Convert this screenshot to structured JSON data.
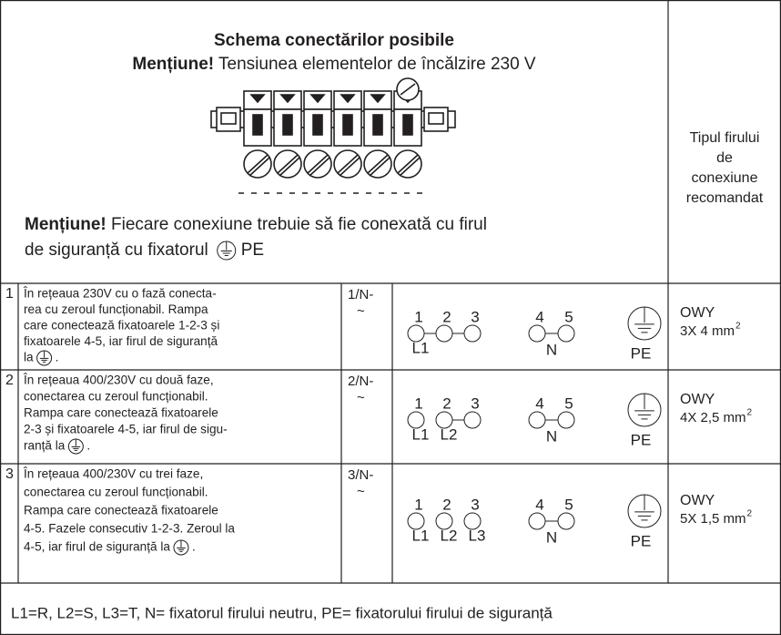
{
  "header": {
    "title": "Schema conectărilor posibile",
    "note1_label": "Mențiune!",
    "note1_text": "Tensiunea elementelor de încălzire 230 V",
    "note2_label": "Mențiune!",
    "note2_line1": "Fiecare conexiune trebuie să fie conexată cu firul",
    "note2_line2": "de siguranță cu fixatorul",
    "note2_end": "PE"
  },
  "wire_header": [
    "Tipul firului",
    "de",
    "conexiune",
    "recomandat"
  ],
  "rows": [
    {
      "number": "1",
      "lines": [
        "În rețeaua 230V cu o fază conecta-",
        "rea cu zeroul funcționabil. Rampa",
        "care conectează fixatoarele 1-2-3 și",
        "fixatoarele 4-5, iar firul de siguranță"
      ],
      "last_before": "la",
      "last_after": ".",
      "code": [
        "1/N-",
        "~"
      ],
      "terminals": [
        "1",
        "2",
        "3",
        "4",
        "5"
      ],
      "phases": [
        "L1"
      ],
      "neutral": "N",
      "earth": "PE",
      "wire": "OWY",
      "wire_size": "3X 4 mm",
      "wire_exp": "2"
    },
    {
      "number": "2",
      "lines": [
        "În rețeaua 400/230V cu două faze,",
        "conectarea cu zeroul funcționabil.",
        "Rampa care conectează fixatoarele",
        "2-3 și fixatoarele 4-5, iar firul de sigu-"
      ],
      "last_before": "ranță la",
      "last_after": ".",
      "code": [
        "2/N-",
        "~"
      ],
      "terminals": [
        "1",
        "2",
        "3",
        "4",
        "5"
      ],
      "phases": [
        "L1",
        "L2"
      ],
      "neutral": "N",
      "earth": "PE",
      "wire": "OWY",
      "wire_size": "4X 2,5 mm",
      "wire_exp": "2"
    },
    {
      "number": "3",
      "lines": [
        "În rețeaua 400/230V cu trei faze,",
        "conectarea cu zeroul funcționabil.",
        "Rampa care conectează fixatoarele",
        "4-5. Fazele consecutiv 1-2-3. Zeroul la"
      ],
      "last_before": "4-5, iar firul de siguranță la",
      "last_after": ".",
      "code": [
        "3/N-",
        "~"
      ],
      "terminals": [
        "1",
        "2",
        "3",
        "4",
        "5"
      ],
      "phases": [
        "L1",
        "L2",
        "L3"
      ],
      "neutral": "N",
      "earth": "PE",
      "wire": "OWY",
      "wire_size": "5X 1,5 mm",
      "wire_exp": "2"
    }
  ],
  "footer": "L1=R, L2=S, L3=T, N= fixatorul firului neutru, PE= fixatorului firului de siguranță"
}
